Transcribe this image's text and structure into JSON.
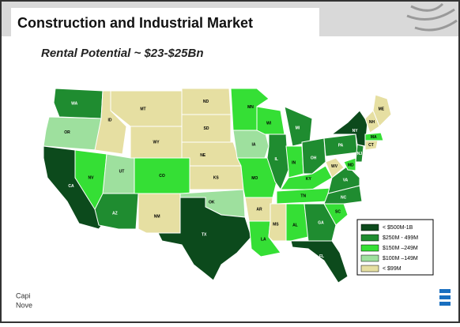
{
  "header": {
    "title": "Construction and Industrial Market",
    "subtitle": "Rental Potential ~ $23-$25Bn"
  },
  "legend": {
    "items": [
      {
        "label": "< $500M-1B",
        "color": "#0c4a1c"
      },
      {
        "label": "$250M - 499M",
        "color": "#1f8c30"
      },
      {
        "label": "$150M –249M",
        "color": "#35df35"
      },
      {
        "label": "$100M –149M",
        "color": "#9ee09e"
      },
      {
        "label": "< $99M",
        "color": "#e6dfa2"
      }
    ]
  },
  "states": [
    {
      "label": "WA",
      "tier": 1
    },
    {
      "label": "OR",
      "tier": 3
    },
    {
      "label": "CA",
      "tier": 0
    },
    {
      "label": "NV",
      "tier": 2
    },
    {
      "label": "ID",
      "tier": 4
    },
    {
      "label": "MT",
      "tier": 4
    },
    {
      "label": "WY",
      "tier": 4
    },
    {
      "label": "UT",
      "tier": 3
    },
    {
      "label": "CO",
      "tier": 2
    },
    {
      "label": "AZ",
      "tier": 1
    },
    {
      "label": "NM",
      "tier": 4
    },
    {
      "label": "ND",
      "tier": 4
    },
    {
      "label": "SD",
      "tier": 4
    },
    {
      "label": "NE",
      "tier": 4
    },
    {
      "label": "KS",
      "tier": 4
    },
    {
      "label": "OK",
      "tier": 3
    },
    {
      "label": "TX",
      "tier": 0
    },
    {
      "label": "MN",
      "tier": 2
    },
    {
      "label": "IA",
      "tier": 3
    },
    {
      "label": "MO",
      "tier": 2
    },
    {
      "label": "AR",
      "tier": 4
    },
    {
      "label": "LA",
      "tier": 2
    },
    {
      "label": "WI",
      "tier": 2
    },
    {
      "label": "IL",
      "tier": 1
    },
    {
      "label": "MI",
      "tier": 1
    },
    {
      "label": "IN",
      "tier": 2
    },
    {
      "label": "OH",
      "tier": 1
    },
    {
      "label": "KY",
      "tier": 2
    },
    {
      "label": "TN",
      "tier": 2
    },
    {
      "label": "MS",
      "tier": 4
    },
    {
      "label": "AL",
      "tier": 2
    },
    {
      "label": "GA",
      "tier": 1
    },
    {
      "label": "FL",
      "tier": 0
    },
    {
      "label": "SC",
      "tier": 2
    },
    {
      "label": "NC",
      "tier": 1
    },
    {
      "label": "VA",
      "tier": 1
    },
    {
      "label": "WV",
      "tier": 4
    },
    {
      "label": "PA",
      "tier": 1
    },
    {
      "label": "NY",
      "tier": 0
    },
    {
      "label": "ME",
      "tier": 4
    },
    {
      "label": "NH",
      "tier": 4
    },
    {
      "label": "MA",
      "tier": 2
    },
    {
      "label": "CT",
      "tier": 4
    },
    {
      "label": "NJ",
      "tier": 1
    },
    {
      "label": "MD",
      "tier": 2
    }
  ],
  "footer": {
    "line1": "Capi",
    "line2": "Nove"
  }
}
